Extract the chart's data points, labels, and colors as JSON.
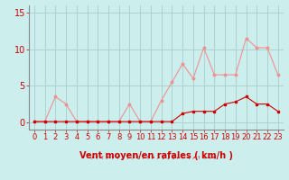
{
  "x": [
    0,
    1,
    2,
    3,
    4,
    5,
    6,
    7,
    8,
    9,
    10,
    11,
    12,
    13,
    14,
    15,
    16,
    17,
    18,
    19,
    20,
    21,
    22,
    23
  ],
  "rafales": [
    0.1,
    0.1,
    3.5,
    2.5,
    0.1,
    0.1,
    0.1,
    0.1,
    0.1,
    2.5,
    0.1,
    0.1,
    3.0,
    5.5,
    8.0,
    6.0,
    10.2,
    6.5,
    6.5,
    6.5,
    11.5,
    10.2,
    10.2,
    6.5
  ],
  "moyen": [
    0.1,
    0.1,
    0.1,
    0.1,
    0.1,
    0.1,
    0.1,
    0.1,
    0.1,
    0.1,
    0.1,
    0.1,
    0.1,
    0.1,
    1.2,
    1.5,
    1.5,
    1.5,
    2.5,
    2.8,
    3.5,
    2.5,
    2.5,
    1.5
  ],
  "bg_color": "#cceeed",
  "grid_color": "#aacccc",
  "line_color_rafales": "#f09090",
  "line_color_moyen": "#cc0000",
  "marker_color_rafales": "#f09090",
  "marker_color_moyen": "#cc0000",
  "xlabel": "Vent moyen/en rafales ( km/h )",
  "xlabel_color": "#cc0000",
  "xlabel_fontsize": 7,
  "ytick_labels": [
    "0",
    "5",
    "10",
    "15"
  ],
  "ytick_vals": [
    0,
    5,
    10,
    15
  ],
  "ylim": [
    -1.0,
    16.0
  ],
  "xlim": [
    -0.5,
    23.5
  ],
  "tick_color": "#cc0000",
  "tick_fontsize": 6,
  "spine_color": "#888888"
}
